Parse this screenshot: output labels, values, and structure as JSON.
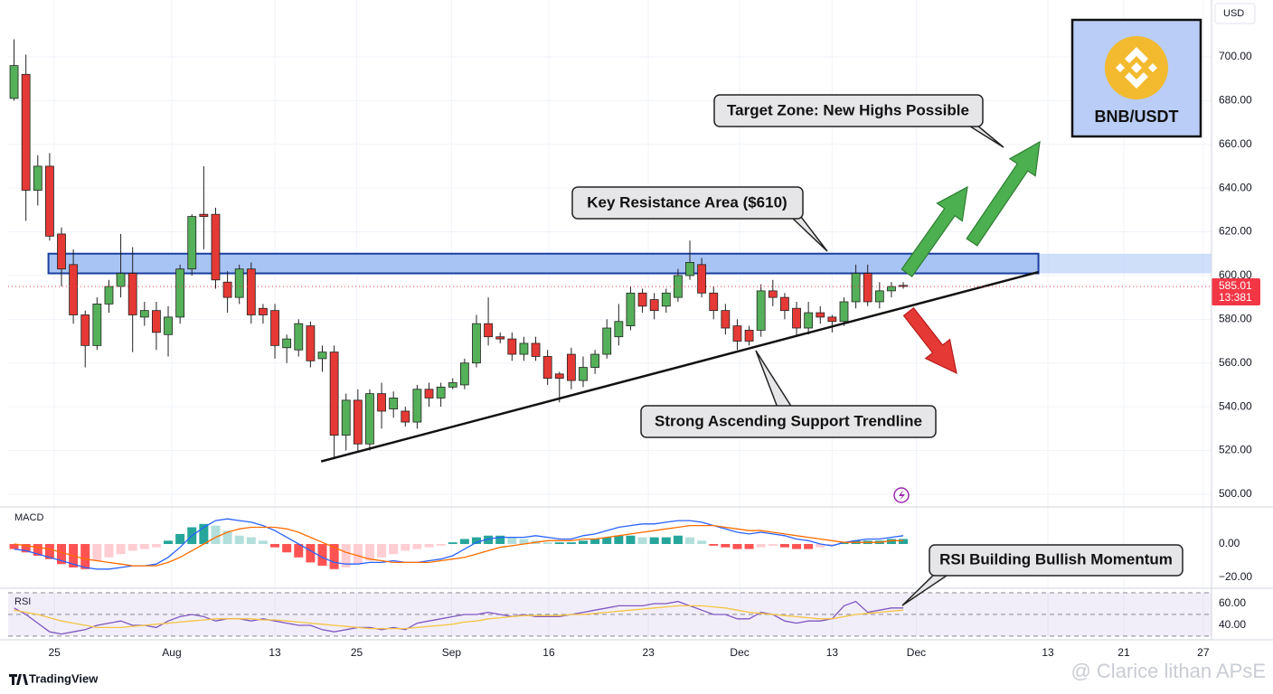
{
  "chart_data": [
    {
      "type": "candlestick",
      "up_color": "#55b05a",
      "down_color": "#e53935",
      "outline_color": "#222222",
      "open": [
        681,
        692,
        639,
        650,
        619,
        605,
        582,
        568,
        587,
        595,
        601,
        581,
        584,
        573,
        581,
        603,
        628,
        628,
        597,
        590,
        603,
        585,
        584,
        567,
        566,
        577,
        562,
        565,
        527,
        543,
        523,
        546,
        539,
        538,
        533,
        548,
        544,
        549,
        550,
        560,
        578,
        572,
        571,
        564,
        569,
        563,
        555,
        564,
        552,
        558,
        564,
        572,
        577,
        592,
        589,
        586,
        590,
        600,
        605,
        592,
        584,
        577,
        575,
        575,
        593,
        590,
        585,
        576,
        583,
        581,
        579,
        588,
        601,
        588,
        593,
        595.5
      ],
      "high": [
        708,
        701,
        655,
        656,
        622,
        612,
        584,
        590,
        598,
        619,
        613,
        588,
        588,
        586,
        605,
        628,
        650,
        631,
        602,
        605,
        606,
        587,
        587,
        573,
        580,
        579,
        568,
        568,
        546,
        548,
        548,
        551,
        547,
        540,
        550,
        551,
        551,
        553,
        562,
        582,
        590,
        574,
        574,
        572,
        572,
        566,
        556,
        567,
        563,
        566,
        580,
        587,
        595,
        594,
        592,
        594,
        603,
        616,
        608,
        595,
        587,
        580,
        577,
        596,
        598,
        592,
        588,
        588,
        586,
        582,
        590,
        605,
        605,
        597,
        597,
        597
      ],
      "low": [
        680,
        625,
        632,
        616,
        595,
        578,
        558,
        566,
        583,
        590,
        565,
        577,
        566,
        563,
        578,
        600,
        612,
        594,
        583,
        587,
        578,
        578,
        562,
        560,
        563,
        558,
        556,
        516,
        520,
        519,
        520,
        530,
        535,
        531,
        530,
        540,
        540,
        548,
        548,
        558,
        568,
        569,
        561,
        561,
        561,
        550,
        542,
        548,
        549,
        555,
        562,
        568,
        575,
        583,
        580,
        583,
        588,
        598,
        590,
        580,
        573,
        566,
        568,
        572,
        586,
        580,
        572,
        573,
        578,
        574,
        577,
        585,
        586,
        585,
        590,
        594
      ],
      "close": [
        696,
        639,
        650,
        618,
        603,
        582,
        568,
        587,
        595,
        601,
        582,
        584,
        574,
        581,
        603,
        627,
        627,
        598,
        590,
        603,
        582,
        582,
        568,
        571,
        578,
        561,
        565,
        527,
        543,
        523,
        546,
        538,
        544,
        533,
        548,
        544,
        549,
        551,
        560,
        578,
        572,
        571,
        564,
        569,
        563,
        553,
        553,
        552,
        558,
        564,
        576,
        579,
        592,
        586,
        584,
        592,
        600,
        606,
        592,
        584,
        576,
        570,
        570,
        593,
        590,
        584,
        576,
        583,
        581,
        579,
        588,
        601,
        588,
        593,
        595,
        595
      ],
      "xlim": [
        -0.5,
        101
      ],
      "xticks": [
        {
          "value": 3.4,
          "label": "25"
        },
        {
          "value": 13.3,
          "label": "Aug"
        },
        {
          "value": 22.0,
          "label": "13"
        },
        {
          "value": 28.9,
          "label": "25"
        },
        {
          "value": 36.9,
          "label": "Sep"
        },
        {
          "value": 45.1,
          "label": "16"
        },
        {
          "value": 53.5,
          "label": "23"
        },
        {
          "value": 61.2,
          "label": "Dec"
        },
        {
          "value": 69.0,
          "label": "13"
        },
        {
          "value": 76.1,
          "label": "Dec"
        },
        {
          "value": 87.2,
          "label": "13"
        },
        {
          "value": 93.6,
          "label": "21"
        },
        {
          "value": 100.3,
          "label": "27"
        }
      ],
      "ylim": [
        494.6,
        726
      ],
      "yticks": [
        {
          "value": 500,
          "label": "500.00"
        },
        {
          "value": 520,
          "label": "520.00"
        },
        {
          "value": 540,
          "label": "540.00"
        },
        {
          "value": 560,
          "label": "560.00"
        },
        {
          "value": 580,
          "label": "580.00"
        },
        {
          "value": 600,
          "label": "600.00"
        },
        {
          "value": 620,
          "label": "620.00"
        },
        {
          "value": 640,
          "label": "640.00"
        },
        {
          "value": 660,
          "label": "660.00"
        },
        {
          "value": 680,
          "label": "680.00"
        },
        {
          "value": 700,
          "label": "700.00"
        }
      ],
      "grid": true,
      "last_price_label": "585.01",
      "countdown_label": "13:381",
      "last_price_color": "#f23645",
      "resistance_zone": {
        "x": [
          2.9,
          86.4
        ],
        "low": 601,
        "high": 610,
        "color": "#a8c4f5",
        "label": "Key Resistance Area ($610)"
      },
      "trendline": {
        "x": [
          25.9,
          86.4
        ],
        "y": [
          515,
          601.6
        ],
        "label": "Strong Ascending Support Trendline"
      },
      "annotations": [
        "Target Zone: New Highs Possible"
      ]
    },
    {
      "type": "macd",
      "title": "MACD",
      "ylim": [
        -25.9,
        21.6
      ],
      "yticks": [
        {
          "value": 0,
          "label": "0.00"
        },
        {
          "value": -20,
          "label": "−20.00"
        }
      ],
      "series": [
        {
          "color": "#2962ff",
          "values": [
            -3,
            -4,
            -6,
            -8,
            -10,
            -12,
            -14,
            -15,
            -15,
            -14,
            -13,
            -13,
            -12,
            -8,
            -2,
            5,
            10,
            14,
            15,
            14,
            13,
            11,
            8,
            4,
            0,
            -4,
            -8,
            -11,
            -12,
            -12,
            -11,
            -11,
            -10,
            -11,
            -11,
            -10,
            -9,
            -7,
            -3,
            1,
            3,
            4,
            4,
            4,
            5,
            4,
            3,
            3,
            5,
            6,
            8,
            10,
            11,
            12,
            12,
            13,
            14,
            14,
            13,
            11,
            9,
            7,
            6,
            7,
            6,
            5,
            3,
            2,
            0,
            -1,
            1,
            2,
            3,
            3,
            4,
            5
          ]
        },
        {
          "color": "#ff6d00",
          "values": [
            0,
            -1,
            -2,
            -3,
            -5,
            -7,
            -9,
            -10,
            -11,
            -12,
            -13,
            -13,
            -13,
            -11,
            -8,
            -4,
            0,
            4,
            7,
            9,
            10,
            10,
            10,
            9,
            7,
            4,
            1,
            -2,
            -5,
            -7,
            -9,
            -10,
            -11,
            -11,
            -11,
            -11,
            -10,
            -9,
            -8,
            -6,
            -4,
            -2,
            -1,
            0,
            1,
            2,
            2,
            2,
            3,
            3,
            4,
            5,
            6,
            7,
            8,
            9,
            10,
            11,
            11,
            11,
            10,
            9,
            8,
            8,
            7,
            6,
            5,
            4,
            3,
            2,
            1,
            1,
            1,
            1,
            2,
            2
          ]
        }
      ],
      "histogram": {
        "values": [
          -3,
          -5,
          -7,
          -9,
          -12,
          -14,
          -15,
          -10,
          -8,
          -6,
          -4,
          -3,
          -2,
          2,
          6,
          10,
          12,
          11,
          8,
          5,
          4,
          2,
          -2,
          -5,
          -8,
          -11,
          -13,
          -15,
          -14,
          -12,
          -10,
          -8,
          -6,
          -4,
          -3,
          -2,
          -1,
          1,
          3,
          4,
          5,
          5,
          4,
          3,
          2,
          1,
          1,
          1,
          2,
          3,
          4,
          5,
          5,
          4,
          4,
          4,
          5,
          4,
          2,
          -1,
          -2,
          -3,
          -3,
          -2,
          -1,
          -2,
          -3,
          -3,
          -2,
          -1,
          1,
          2,
          2,
          2,
          3,
          3
        ],
        "colors": {
          "up_rising": "#26a69a",
          "up_falling": "#b2dfdb",
          "down_falling": "#ff5252",
          "down_rising": "#ffcdd2"
        }
      }
    },
    {
      "type": "rsi",
      "title": "RSI",
      "ylim": [
        28.3,
        70.8
      ],
      "yticks": [
        {
          "value": 60,
          "label": "60.00"
        },
        {
          "value": 40,
          "label": "40.00"
        }
      ],
      "bands": [
        70,
        50,
        30
      ],
      "band_color": "#7e57c2",
      "series": [
        {
          "color": "#7e57c2",
          "values": [
            56,
            50,
            42,
            34,
            32,
            34,
            36,
            40,
            42,
            44,
            40,
            40,
            38,
            44,
            48,
            50,
            48,
            44,
            46,
            46,
            44,
            46,
            44,
            42,
            40,
            40,
            36,
            34,
            36,
            38,
            38,
            36,
            38,
            36,
            42,
            44,
            46,
            48,
            50,
            50,
            52,
            50,
            48,
            50,
            48,
            48,
            48,
            50,
            52,
            54,
            56,
            58,
            58,
            58,
            60,
            60,
            62,
            58,
            54,
            50,
            50,
            46,
            46,
            52,
            50,
            44,
            42,
            44,
            44,
            46,
            58,
            62,
            52,
            54,
            56,
            56
          ]
        },
        {
          "color": "#f5c342",
          "values": [
            54,
            52,
            50,
            47,
            44,
            42,
            40,
            38,
            38,
            38,
            39,
            40,
            41,
            42,
            43,
            44,
            45,
            46,
            46,
            46,
            46,
            45,
            45,
            44,
            43,
            42,
            41,
            40,
            39,
            38,
            37,
            37,
            37,
            37,
            38,
            39,
            40,
            41,
            43,
            44,
            46,
            47,
            48,
            49,
            49,
            49,
            49,
            50,
            50,
            51,
            52,
            53,
            54,
            55,
            56,
            57,
            58,
            58,
            58,
            57,
            56,
            54,
            52,
            51,
            50,
            49,
            48,
            47,
            46,
            46,
            48,
            50,
            51,
            52,
            53,
            54
          ]
        }
      ],
      "annotation": "RSI Building Bullish Momentum"
    }
  ],
  "currency": "USD",
  "badge": "BNB/USDT",
  "branding": "TradingView",
  "watermark": "@ Clarice lithan APsE"
}
